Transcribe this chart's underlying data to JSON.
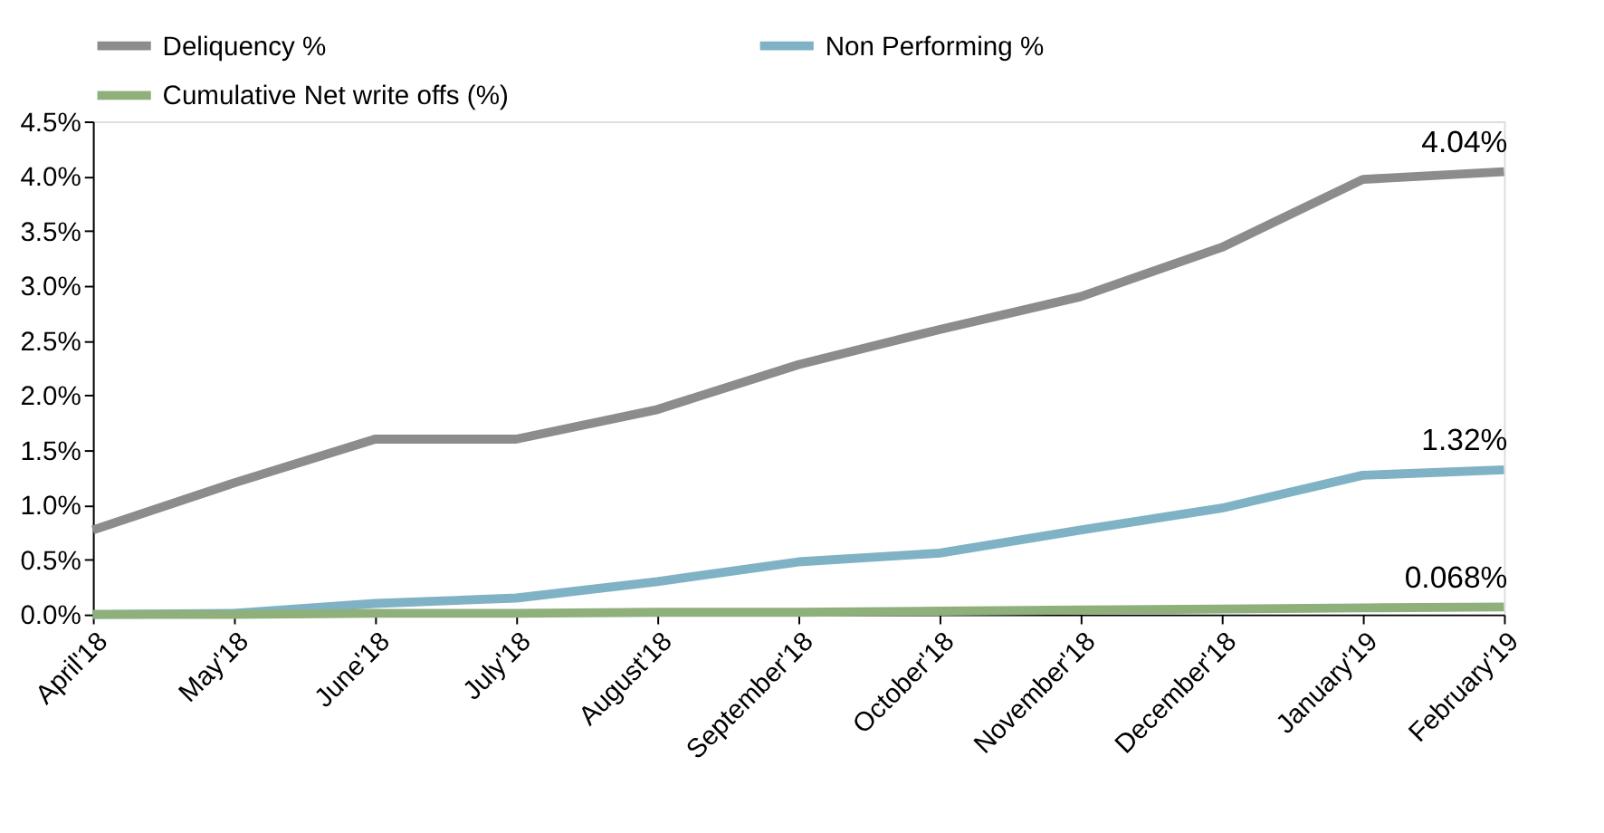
{
  "chart_data": {
    "type": "line",
    "categories": [
      "April'18",
      "May'18",
      "June'18",
      "July'18",
      "August'18",
      "September'18",
      "October'18",
      "November'18",
      "December'18",
      "January'19",
      "February'19"
    ],
    "series": [
      {
        "name": "Deliquency %",
        "color": "#8c8c8c",
        "values": [
          0.77,
          1.2,
          1.6,
          1.6,
          1.87,
          2.28,
          2.6,
          2.9,
          3.35,
          3.97,
          4.04
        ]
      },
      {
        "name": "Non Performing %",
        "color": "#7fb2c4",
        "values": [
          0,
          0.01,
          0.1,
          0.15,
          0.3,
          0.48,
          0.56,
          0.77,
          0.97,
          1.27,
          1.32
        ]
      },
      {
        "name": "Cumulative Net write offs (%)",
        "color": "#8fb07a",
        "values": [
          0,
          0,
          0.01,
          0.01,
          0.02,
          0.02,
          0.03,
          0.04,
          0.05,
          0.06,
          0.068
        ]
      }
    ],
    "ylim": [
      0,
      4.5
    ],
    "yticks": [
      {
        "value": 0,
        "label": "0.0%"
      },
      {
        "value": 0.5,
        "label": "0.5%"
      },
      {
        "value": 1,
        "label": "1.0%"
      },
      {
        "value": 1.5,
        "label": "1.5%"
      },
      {
        "value": 2,
        "label": "2.0%"
      },
      {
        "value": 2.5,
        "label": "2.5%"
      },
      {
        "value": 3,
        "label": "3.0%"
      },
      {
        "value": 3.5,
        "label": "3.5%"
      },
      {
        "value": 4,
        "label": "4.0%"
      },
      {
        "value": 4.5,
        "label": "4.5%"
      }
    ],
    "annotations": [
      {
        "text": "4.04%",
        "x": "February'19",
        "y": 4.04
      },
      {
        "text": "1.32%",
        "x": "February'19",
        "y": 1.32
      },
      {
        "text": "0.068%",
        "x": "February'19",
        "y": 0.068
      }
    ],
    "grid": false,
    "legend": "top",
    "marker": "none",
    "line_style": "solid"
  }
}
